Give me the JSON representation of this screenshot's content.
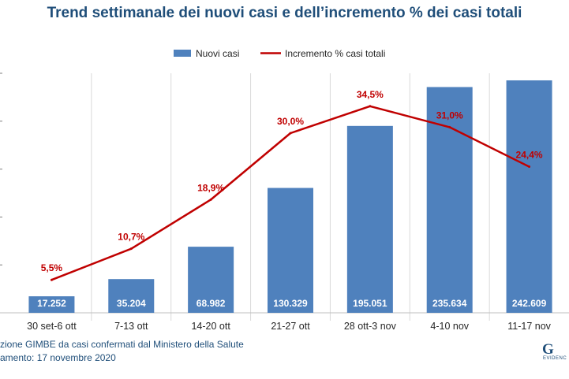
{
  "title": "Trend settimanale dei nuovi casi e dell’incremento % dei casi totali",
  "footer": {
    "line1": "zione GIMBE da casi confermati dal Ministero della Salute",
    "line2": "amento: 17 novembre 2020"
  },
  "logo": {
    "text": "G",
    "subtext": "EVIDENC"
  },
  "colors": {
    "bars": "#4f81bd",
    "line": "#c00000",
    "title": "#1f4e79",
    "grid": "#d9d9d9"
  },
  "chart_data": {
    "type": "bar",
    "categories": [
      "30 set-6 ott",
      "7-13 ott",
      "14-20 ott",
      "21-27 ott",
      "28 ott-3 nov",
      "4-10 nov",
      "11-17 nov"
    ],
    "series": [
      {
        "name": "Nuovi casi",
        "type": "bar",
        "axis": "left",
        "values": [
          17252,
          35204,
          68982,
          130329,
          195051,
          235634,
          242609
        ],
        "labels": [
          "17.252",
          "35.204",
          "68.982",
          "130.329",
          "195.051",
          "235.634",
          "242.609"
        ]
      },
      {
        "name": "Incremento % casi totali",
        "type": "line",
        "axis": "right",
        "values": [
          5.5,
          10.7,
          18.9,
          30.0,
          34.5,
          31.0,
          24.4
        ],
        "labels": [
          "5,5%",
          "10,7%",
          "18,9%",
          "30,0%",
          "34,5%",
          "31,0%",
          "24,4%"
        ]
      }
    ],
    "y_left_lim": [
      0,
      250000
    ],
    "y_right_lim": [
      0,
      40
    ],
    "grid": "vertical category separators",
    "legend": "top-center"
  }
}
